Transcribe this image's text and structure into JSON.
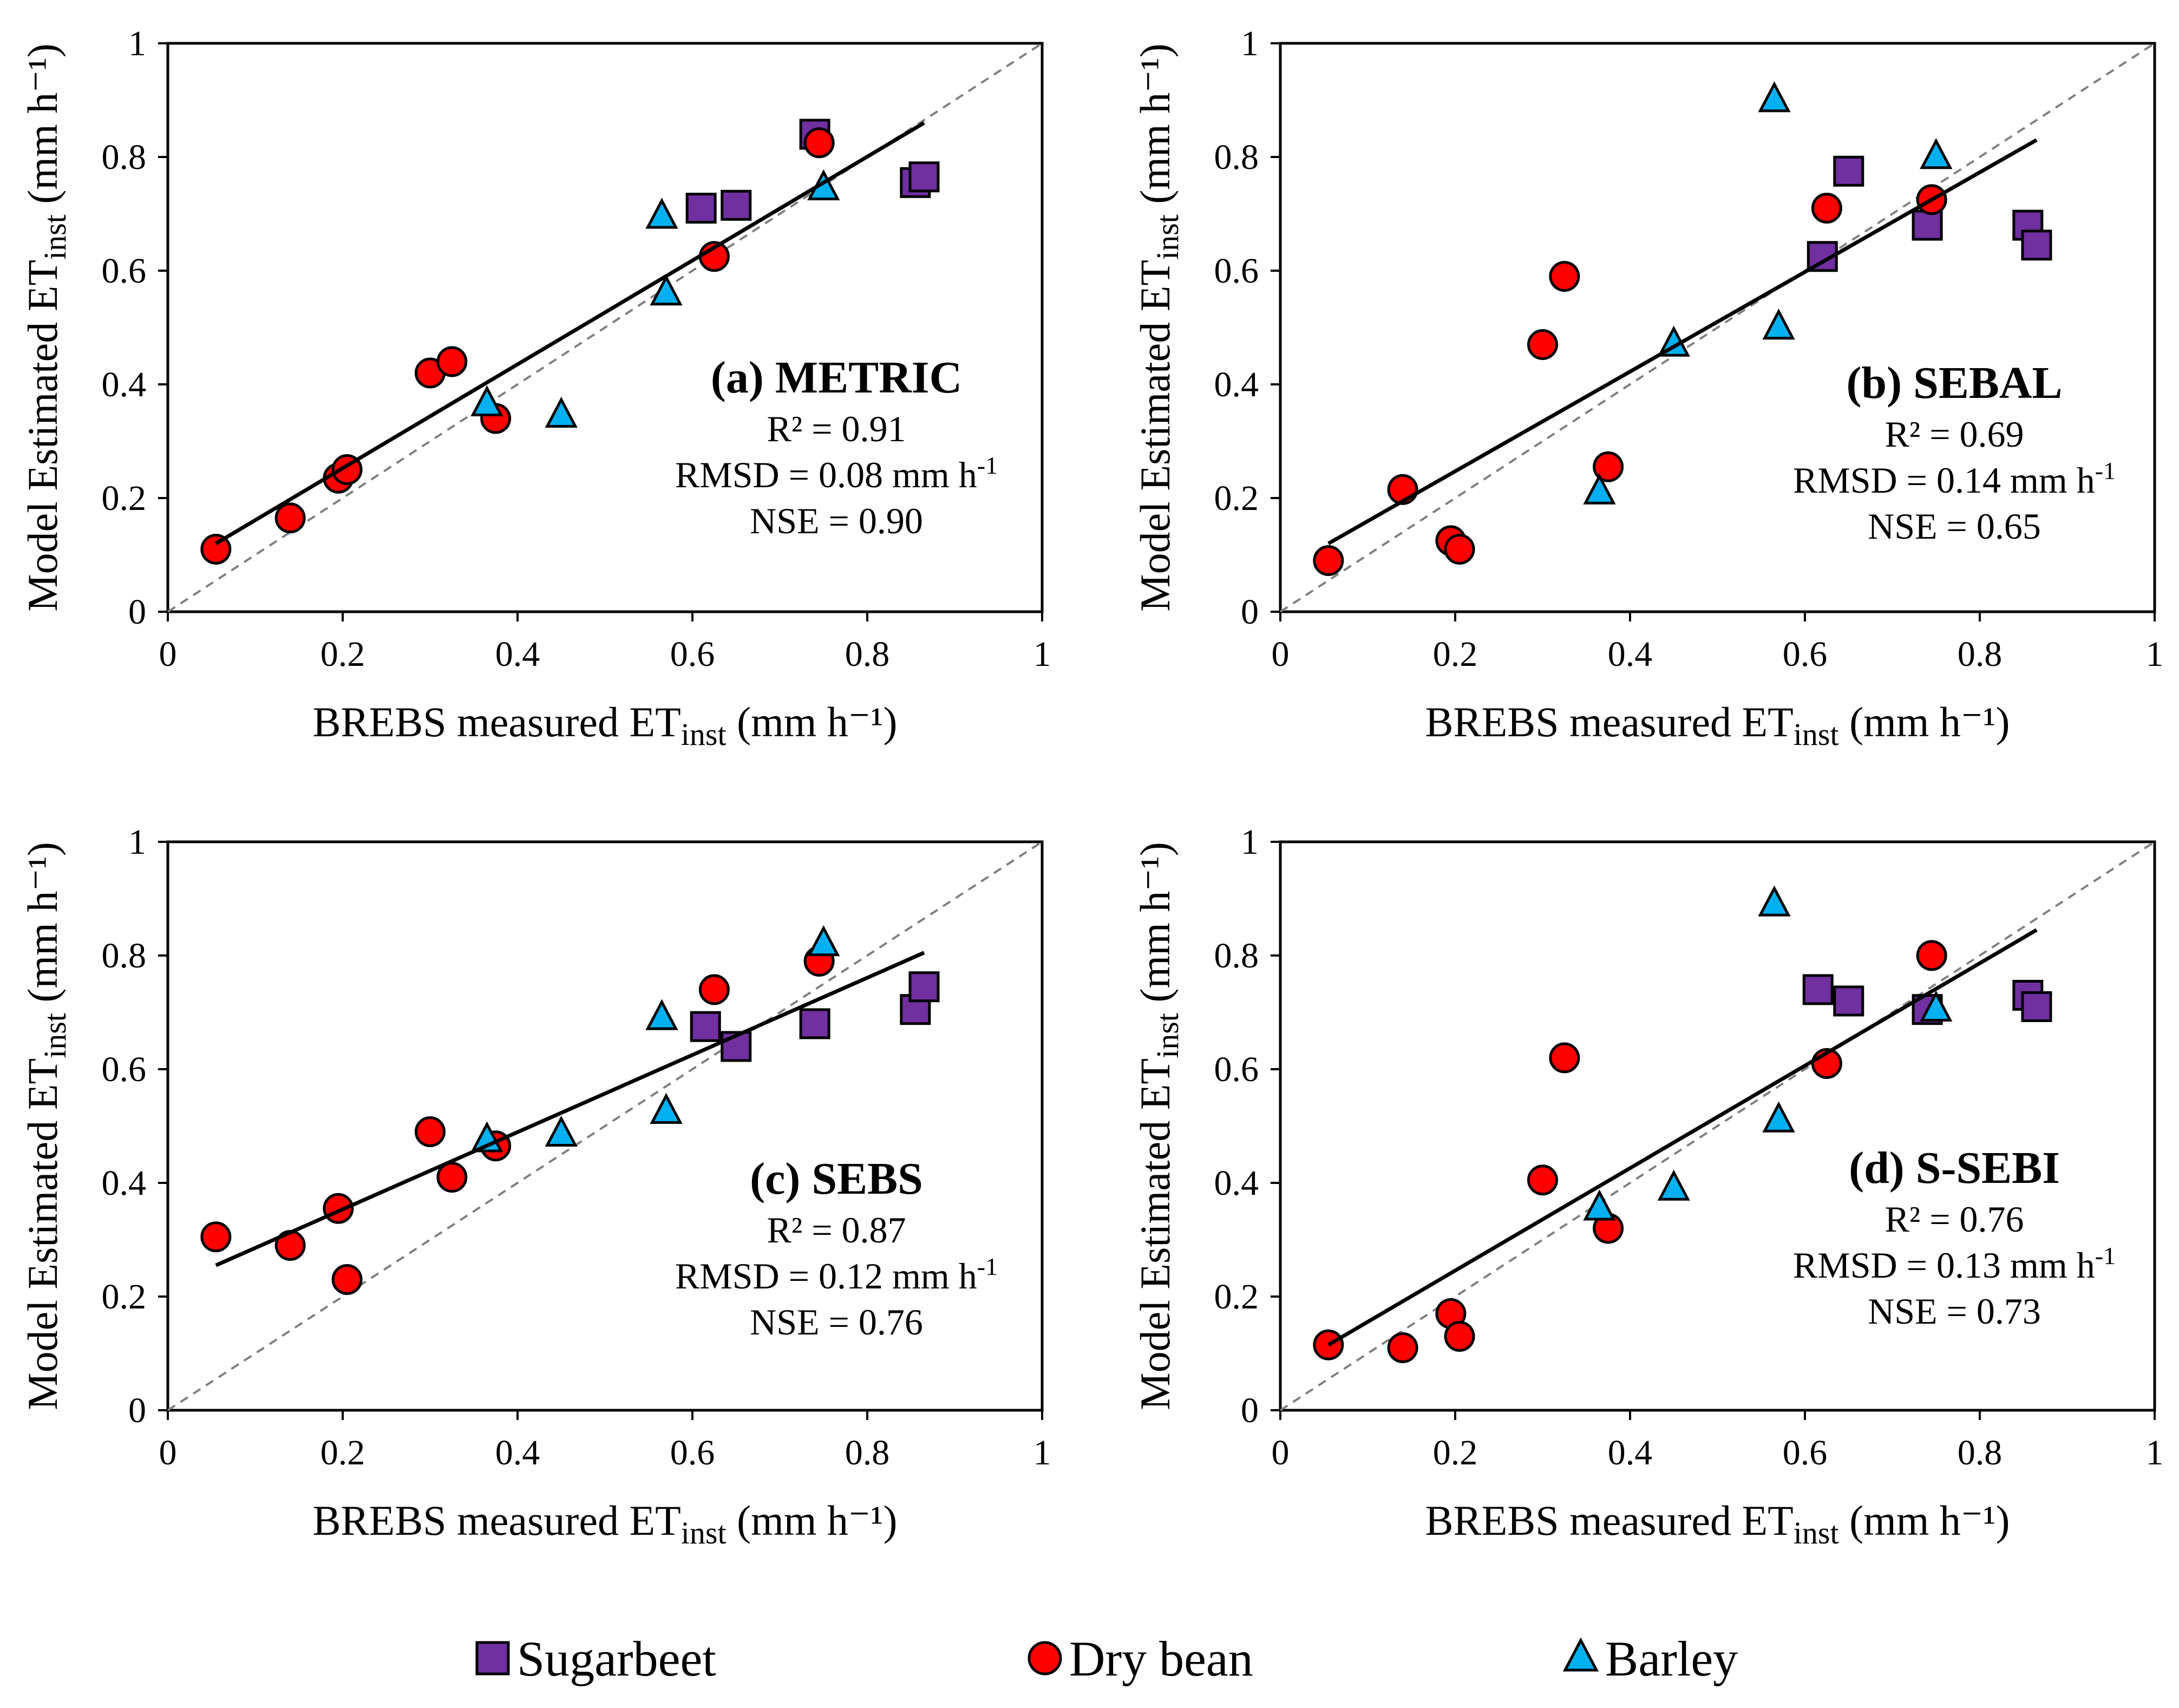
{
  "figure": {
    "legend": [
      {
        "label": "Sugarbeet",
        "marker": "square",
        "color": "#7030A0"
      },
      {
        "label": "Dry bean",
        "marker": "circle",
        "color": "#FF0000"
      },
      {
        "label": "Barley",
        "marker": "triangle",
        "color": "#00B0F0"
      }
    ]
  },
  "chart_data": [
    {
      "type": "scatter",
      "panel": "a",
      "title": "(a) METRIC",
      "stats": [
        "R² = 0.91",
        "RMSD = 0.08 mm h-1",
        "NSE = 0.90"
      ],
      "xlabel": "BREBS measured ET_inst (mm h⁻¹)",
      "ylabel": "Model Estimated ET_inst (mm h⁻¹)",
      "xlim": [
        0,
        1
      ],
      "ylim": [
        0,
        1
      ],
      "xticks": [
        "0",
        "0.2",
        "0.4",
        "0.6",
        "0.8",
        "1"
      ],
      "yticks": [
        "0",
        "0.2",
        "0.4",
        "0.6",
        "0.8",
        "1"
      ],
      "one_to_one_line": true,
      "fit_line": {
        "x": [
          0.055,
          0.865
        ],
        "y": [
          0.12,
          0.86
        ]
      },
      "series": [
        {
          "name": "Sugarbeet",
          "x": [
            0.61,
            0.65,
            0.74,
            0.855,
            0.865
          ],
          "y": [
            0.71,
            0.715,
            0.84,
            0.755,
            0.765
          ]
        },
        {
          "name": "Dry bean",
          "x": [
            0.055,
            0.14,
            0.195,
            0.205,
            0.3,
            0.325,
            0.375,
            0.625,
            0.745
          ],
          "y": [
            0.11,
            0.165,
            0.235,
            0.25,
            0.42,
            0.44,
            0.34,
            0.625,
            0.825
          ]
        },
        {
          "name": "Barley",
          "x": [
            0.365,
            0.45,
            0.565,
            0.57,
            0.75
          ],
          "y": [
            0.365,
            0.345,
            0.695,
            0.56,
            0.745
          ]
        }
      ]
    },
    {
      "type": "scatter",
      "panel": "b",
      "title": "(b) SEBAL",
      "stats": [
        "R² = 0.69",
        "RMSD = 0.14 mm h-1",
        "NSE = 0.65"
      ],
      "xlabel": "BREBS measured ET_inst (mm h⁻¹)",
      "ylabel": "Model Estimated ET_inst (mm h⁻¹)",
      "xlim": [
        0,
        1
      ],
      "ylim": [
        0,
        1
      ],
      "xticks": [
        "0",
        "0.2",
        "0.4",
        "0.6",
        "0.8",
        "1"
      ],
      "yticks": [
        "0",
        "0.2",
        "0.4",
        "0.6",
        "0.8",
        "1"
      ],
      "one_to_one_line": true,
      "fit_line": {
        "x": [
          0.055,
          0.865
        ],
        "y": [
          0.12,
          0.83
        ]
      },
      "series": [
        {
          "name": "Sugarbeet",
          "x": [
            0.62,
            0.65,
            0.74,
            0.855,
            0.865
          ],
          "y": [
            0.625,
            0.775,
            0.68,
            0.68,
            0.645
          ]
        },
        {
          "name": "Dry bean",
          "x": [
            0.055,
            0.14,
            0.195,
            0.205,
            0.3,
            0.325,
            0.375,
            0.625,
            0.745
          ],
          "y": [
            0.09,
            0.215,
            0.125,
            0.11,
            0.47,
            0.59,
            0.255,
            0.71,
            0.725
          ]
        },
        {
          "name": "Barley",
          "x": [
            0.365,
            0.45,
            0.565,
            0.57,
            0.75
          ],
          "y": [
            0.21,
            0.47,
            0.9,
            0.5,
            0.8
          ]
        }
      ]
    },
    {
      "type": "scatter",
      "panel": "c",
      "title": "(c) SEBS",
      "stats": [
        "R² = 0.87",
        "RMSD = 0.12 mm h-1",
        "NSE = 0.76"
      ],
      "xlabel": "BREBS measured ET_inst (mm h⁻¹)",
      "ylabel": "Model Estimated ET_inst (mm h⁻¹)",
      "xlim": [
        0,
        1
      ],
      "ylim": [
        0,
        1
      ],
      "xticks": [
        "0",
        "0.2",
        "0.4",
        "0.6",
        "0.8",
        "1"
      ],
      "yticks": [
        "0",
        "0.2",
        "0.4",
        "0.6",
        "0.8",
        "1"
      ],
      "one_to_one_line": true,
      "fit_line": {
        "x": [
          0.055,
          0.865
        ],
        "y": [
          0.255,
          0.805
        ]
      },
      "series": [
        {
          "name": "Sugarbeet",
          "x": [
            0.615,
            0.65,
            0.74,
            0.855,
            0.865
          ],
          "y": [
            0.675,
            0.64,
            0.68,
            0.705,
            0.745
          ]
        },
        {
          "name": "Dry bean",
          "x": [
            0.055,
            0.14,
            0.195,
            0.205,
            0.3,
            0.325,
            0.375,
            0.625,
            0.745
          ],
          "y": [
            0.305,
            0.29,
            0.355,
            0.23,
            0.49,
            0.41,
            0.465,
            0.74,
            0.79
          ]
        },
        {
          "name": "Barley",
          "x": [
            0.365,
            0.45,
            0.565,
            0.57,
            0.75
          ],
          "y": [
            0.475,
            0.485,
            0.69,
            0.525,
            0.82
          ]
        }
      ]
    },
    {
      "type": "scatter",
      "panel": "d",
      "title": "(d) S-SEBI",
      "stats": [
        "R² = 0.76",
        "RMSD = 0.13 mm h-1",
        "NSE = 0.73"
      ],
      "xlabel": "BREBS measured ET_inst (mm h⁻¹)",
      "ylabel": "Model Estimated ET_inst (mm h⁻¹)",
      "xlim": [
        0,
        1
      ],
      "ylim": [
        0,
        1
      ],
      "xticks": [
        "0",
        "0.2",
        "0.4",
        "0.6",
        "0.8",
        "1"
      ],
      "yticks": [
        "0",
        "0.2",
        "0.4",
        "0.6",
        "0.8",
        "1"
      ],
      "one_to_one_line": true,
      "fit_line": {
        "x": [
          0.055,
          0.865
        ],
        "y": [
          0.115,
          0.845
        ]
      },
      "series": [
        {
          "name": "Sugarbeet",
          "x": [
            0.615,
            0.65,
            0.74,
            0.855,
            0.865
          ],
          "y": [
            0.74,
            0.72,
            0.705,
            0.73,
            0.71
          ]
        },
        {
          "name": "Dry bean",
          "x": [
            0.055,
            0.14,
            0.195,
            0.205,
            0.3,
            0.325,
            0.375,
            0.625,
            0.745
          ],
          "y": [
            0.115,
            0.11,
            0.17,
            0.13,
            0.405,
            0.62,
            0.32,
            0.61,
            0.8
          ]
        },
        {
          "name": "Barley",
          "x": [
            0.365,
            0.45,
            0.565,
            0.57,
            0.75
          ],
          "y": [
            0.355,
            0.39,
            0.89,
            0.51,
            0.705
          ]
        }
      ]
    }
  ]
}
